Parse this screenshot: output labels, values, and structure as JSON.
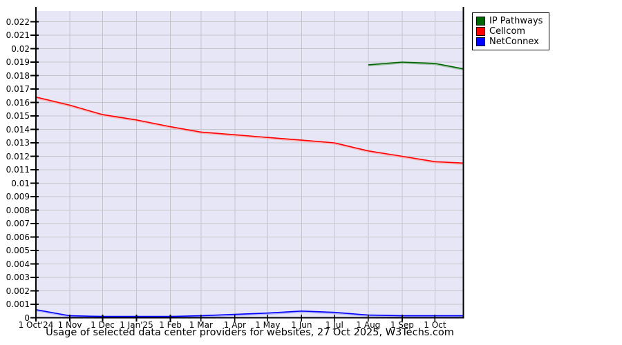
{
  "chart_data": {
    "type": "line",
    "title": "Usage of selected data center providers for websites, 27 Oct 2025, W3Techs.com",
    "grid": true,
    "plot_bg_color": "#e6e6f6",
    "grid_color": "#c4c4c8",
    "axis_color": "#000000",
    "legend_position": "top-right-outside",
    "x_axis": {
      "tick_labels": [
        "1 Oct'24",
        "1 Nov",
        "1 Dec",
        "1 Jan'25",
        "1 Feb",
        "1 Mar",
        "1 Apr",
        "1 May",
        "1 Jun",
        "1 Jul",
        "1 Aug",
        "1 Sep",
        "1 Oct"
      ],
      "tick_days": [
        0,
        31,
        61,
        92,
        123,
        151,
        182,
        212,
        243,
        273,
        304,
        335,
        365
      ],
      "range_days": 391
    },
    "y_axis": {
      "min": 0,
      "max": 0.022,
      "step": 0.001,
      "tick_labels": [
        "0",
        "0.001",
        "0.002",
        "0.003",
        "0.004",
        "0.005",
        "0.006",
        "0.007",
        "0.008",
        "0.009",
        "0.01",
        "0.011",
        "0.012",
        "0.013",
        "0.014",
        "0.015",
        "0.016",
        "0.017",
        "0.018",
        "0.019",
        "0.02",
        "0.021",
        "0.022"
      ]
    },
    "series": [
      {
        "name": "IP Pathways",
        "color": "#006400",
        "halo_color": "#7fae7f",
        "x_days": [
          304,
          335,
          365,
          391
        ],
        "values": [
          0.0188,
          0.019,
          0.0189,
          0.0185
        ]
      },
      {
        "name": "Cellcom",
        "color": "#ff0000",
        "halo_color": "#ff9e9e",
        "x_days": [
          0,
          31,
          61,
          92,
          123,
          151,
          182,
          212,
          243,
          273,
          304,
          335,
          365,
          391
        ],
        "values": [
          0.0164,
          0.0158,
          0.0151,
          0.0147,
          0.0142,
          0.0138,
          0.0136,
          0.0134,
          0.0132,
          0.013,
          0.0124,
          0.012,
          0.0116,
          0.0115
        ]
      },
      {
        "name": "NetConnex",
        "color": "#0000ff",
        "halo_color": "#9a9aff",
        "x_days": [
          0,
          31,
          61,
          92,
          123,
          151,
          182,
          212,
          243,
          273,
          304,
          335,
          365,
          391
        ],
        "values": [
          0.0006,
          0.00015,
          0.0001,
          0.0001,
          0.0001,
          0.00015,
          0.00025,
          0.00035,
          0.0005,
          0.0004,
          0.0002,
          0.00015,
          0.00015,
          0.00015
        ]
      }
    ]
  }
}
